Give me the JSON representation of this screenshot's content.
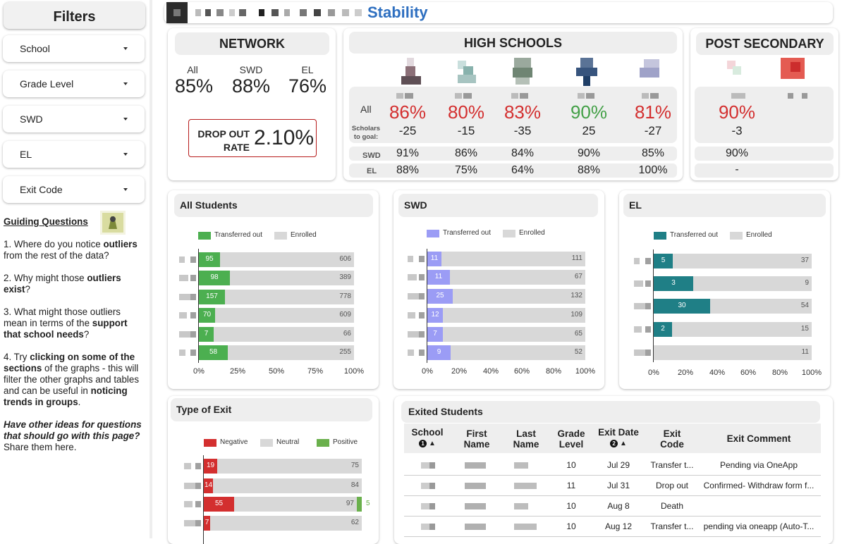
{
  "sidebar": {
    "title": "Filters",
    "filters": [
      {
        "label": "School"
      },
      {
        "label": "Grade Level"
      },
      {
        "label": "SWD"
      },
      {
        "label": "EL"
      },
      {
        "label": "Exit Code"
      }
    ],
    "guiding_title": "Guiding Questions",
    "q1_a": "1. Where do you notice ",
    "q1_b": "outliers",
    "q1_c": "from the rest of the data?",
    "q2_a": "2. Why might those ",
    "q2_b": "outliers",
    "q2_c": "exist",
    "q2_d": "?",
    "q3_a": "3. What might those outliers",
    "q3_b": "mean in terms of the ",
    "q3_c": "support",
    "q3_d": "that school needs",
    "q3_e": "?",
    "q4_a": "4. Try ",
    "q4_b": "clicking on some of the",
    "q4_c": "sections",
    "q4_d": " of the graphs - this will",
    "q4_e": "filter the other graphs and tables",
    "q4_f": "and can be useful in ",
    "q4_g": "noticing",
    "q4_h": "trends in groups",
    "q4_i": ".",
    "q5_a": "Have other ideas for questions",
    "q5_b": "that should go with this page?",
    "q5_c": "Share them here."
  },
  "header": {
    "title": "Stability"
  },
  "network": {
    "title": "NETWORK",
    "metrics": [
      {
        "label": "All",
        "value": "85%"
      },
      {
        "label": "SWD",
        "value": "88%"
      },
      {
        "label": "EL",
        "value": "76%"
      }
    ],
    "dropout_label_1": "DROP OUT",
    "dropout_label_2": "RATE",
    "dropout_value": "2.10%"
  },
  "high_schools": {
    "title": "HIGH SCHOOLS",
    "row_all": "All",
    "row_goal_1": "Scholars",
    "row_goal_2": "to goal:",
    "row_swd": "SWD",
    "row_el": "EL",
    "schools": [
      {
        "all": "86%",
        "goal": "-25",
        "swd": "91%",
        "el": "88%",
        "color": "#d32f2f"
      },
      {
        "all": "80%",
        "goal": "-15",
        "swd": "86%",
        "el": "75%",
        "color": "#d32f2f"
      },
      {
        "all": "83%",
        "goal": "-35",
        "swd": "84%",
        "el": "64%",
        "color": "#d32f2f"
      },
      {
        "all": "90%",
        "goal": "25",
        "swd": "90%",
        "el": "88%",
        "color": "#43a047"
      },
      {
        "all": "81%",
        "goal": "-27",
        "swd": "85%",
        "el": "100%",
        "color": "#d32f2f"
      }
    ]
  },
  "post_secondary": {
    "title": "POST SECONDARY",
    "all": "90%",
    "goal": "-3",
    "swd": "90%",
    "el": "-"
  },
  "charts": {
    "all_students": {
      "title": "All Students",
      "legend_a": "Transferred out",
      "legend_b": "Enrolled",
      "color": "#4caf50",
      "ticks": [
        "0%",
        "25%",
        "50%",
        "75%",
        "100%"
      ]
    },
    "swd": {
      "title": "SWD",
      "legend_a": "Transferred out",
      "legend_b": "Enrolled",
      "color": "#9b9cf5",
      "ticks": [
        "0%",
        "20%",
        "40%",
        "60%",
        "80%",
        "100%"
      ]
    },
    "el": {
      "title": "EL",
      "legend_a": "Transferred out",
      "legend_b": "Enrolled",
      "color": "#1f7f86",
      "ticks": [
        "0%",
        "20%",
        "40%",
        "60%",
        "80%",
        "100%"
      ]
    },
    "exit": {
      "title": "Type of Exit",
      "legend_a": "Negative",
      "legend_b": "Neutral",
      "legend_c": "Positive",
      "color_a": "#d32f2f",
      "color_c": "#6ab04c"
    }
  },
  "chart_data": [
    {
      "type": "bar",
      "title": "All Students",
      "series": [
        {
          "name": "Transferred out",
          "values": [
            95,
            98,
            157,
            70,
            7,
            58
          ]
        },
        {
          "name": "Enrolled",
          "values": [
            606,
            389,
            778,
            609,
            66,
            255
          ]
        }
      ],
      "xlim": [
        0,
        100
      ]
    },
    {
      "type": "bar",
      "title": "SWD",
      "series": [
        {
          "name": "Transferred out",
          "values": [
            11,
            11,
            25,
            12,
            7,
            9
          ]
        },
        {
          "name": "Enrolled",
          "values": [
            111,
            67,
            132,
            109,
            65,
            52
          ]
        }
      ],
      "xlim": [
        0,
        100
      ]
    },
    {
      "type": "bar",
      "title": "EL",
      "series": [
        {
          "name": "Transferred out",
          "values": [
            5,
            3,
            30,
            2,
            0
          ]
        },
        {
          "name": "Enrolled",
          "values": [
            37,
            9,
            54,
            15,
            11
          ]
        }
      ],
      "xlim": [
        0,
        100
      ]
    },
    {
      "type": "bar",
      "title": "Type of Exit",
      "series": [
        {
          "name": "Negative",
          "values": [
            19,
            14,
            55,
            7
          ]
        },
        {
          "name": "Neutral",
          "values": [
            75,
            84,
            97,
            62
          ]
        },
        {
          "name": "Positive",
          "values": [
            0,
            0,
            5,
            0
          ]
        }
      ]
    }
  ],
  "exited": {
    "title": "Exited Students",
    "headers": {
      "school": "School",
      "school_n": "1",
      "first_1": "First",
      "first_2": "Name",
      "last_1": "Last",
      "last_2": "Name",
      "grade_1": "Grade",
      "grade_2": "Level",
      "date": "Exit Date",
      "date_n": "2",
      "code_1": "Exit",
      "code_2": "Code",
      "comment": "Exit Comment"
    },
    "rows": [
      {
        "grade": "10",
        "date": "Jul 29",
        "code": "Transfer t...",
        "comment": "Pending via OneApp"
      },
      {
        "grade": "11",
        "date": "Jul 31",
        "code": "Drop out",
        "comment": "Confirmed- Withdraw form f..."
      },
      {
        "grade": "10",
        "date": "Aug 8",
        "code": "Death",
        "comment": ""
      },
      {
        "grade": "10",
        "date": "Aug 12",
        "code": "Transfer t...",
        "comment": "pending via oneapp (Auto-T..."
      }
    ]
  }
}
